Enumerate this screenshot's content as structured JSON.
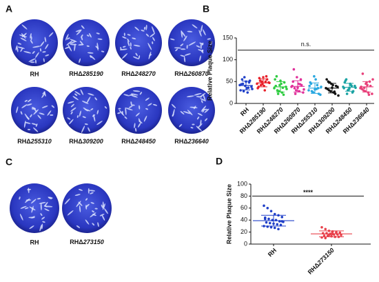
{
  "images": [
    {
      "panel": "A",
      "wells": [
        "RH",
        "RHΔ285190",
        "RHΔ248270",
        "RHΔ260870",
        "RHΔ255310",
        "RHΔ309200",
        "RHΔ248450",
        "RHΔ236640"
      ]
    },
    {
      "panel": "C",
      "wells": [
        "RH",
        "RHΔ273150"
      ]
    }
  ],
  "chart_data": [
    {
      "type": "dot_plot",
      "panel": "B",
      "y_label": "Relative Plaque Size",
      "categories": [
        "RH",
        "RHΔ285190",
        "RHΔ248270",
        "RHΔ260870",
        "RHΔ255310",
        "RHΔ309200",
        "RHΔ248450",
        "RHΔ236640"
      ],
      "colors": [
        "#1f3fc8",
        "#e8202a",
        "#2ecc40",
        "#e0309a",
        "#2aa8e0",
        "#111111",
        "#1aa3a3",
        "#e8407a"
      ],
      "points": [
        [
          42,
          55,
          60,
          35,
          48,
          38,
          30,
          45,
          40,
          25,
          52,
          33,
          44,
          28,
          50,
          36
        ],
        [
          45,
          58,
          50,
          40,
          62,
          48,
          35,
          52,
          44,
          30,
          55,
          47,
          38,
          42,
          60,
          50
        ],
        [
          35,
          62,
          28,
          45,
          20,
          38,
          55,
          30,
          42,
          25,
          48,
          33,
          40,
          22,
          52,
          36
        ],
        [
          38,
          78,
          30,
          45,
          55,
          25,
          40,
          35,
          60,
          28,
          42,
          32,
          50,
          22,
          36,
          44
        ],
        [
          30,
          45,
          25,
          55,
          35,
          20,
          40,
          28,
          62,
          33,
          22,
          38,
          48,
          26,
          32,
          42
        ],
        [
          35,
          50,
          28,
          42,
          22,
          38,
          55,
          30,
          45,
          25,
          40,
          18,
          33,
          48,
          36,
          27
        ],
        [
          38,
          52,
          30,
          45,
          25,
          40,
          35,
          55,
          32,
          42,
          28,
          36,
          48,
          22,
          34,
          40
        ],
        [
          35,
          68,
          28,
          42,
          50,
          22,
          38,
          30,
          45,
          25,
          40,
          55,
          33,
          36,
          48,
          20
        ]
      ],
      "means": [
        41,
        47,
        38,
        39,
        35,
        35,
        37,
        38
      ],
      "sds": [
        10,
        9,
        12,
        13,
        12,
        11,
        9,
        12
      ],
      "ylim": [
        0,
        150
      ],
      "yticks": [
        0,
        50,
        100,
        150
      ],
      "annotation": {
        "text": "n.s.",
        "y": 122
      }
    },
    {
      "type": "dot_plot",
      "panel": "D",
      "y_label": "Relative Plaque Size",
      "categories": [
        "RH",
        "RHΔ273150"
      ],
      "colors": [
        "#1f3fc8",
        "#e8404a"
      ],
      "points": [
        [
          64,
          60,
          55,
          50,
          48,
          45,
          44,
          42,
          40,
          40,
          38,
          37,
          36,
          35,
          34,
          33,
          32,
          30,
          29,
          28,
          27,
          25,
          38,
          42
        ],
        [
          28,
          25,
          22,
          21,
          20,
          19,
          18,
          18,
          17,
          16,
          16,
          15,
          14,
          14,
          13,
          12,
          12,
          11,
          10,
          15,
          17,
          19
        ]
      ],
      "means": [
        39,
        17
      ],
      "sds": [
        9,
        5
      ],
      "ylim": [
        0,
        100
      ],
      "yticks": [
        0,
        20,
        40,
        60,
        80,
        100
      ],
      "annotation": {
        "text": "****",
        "y": 80
      }
    }
  ]
}
